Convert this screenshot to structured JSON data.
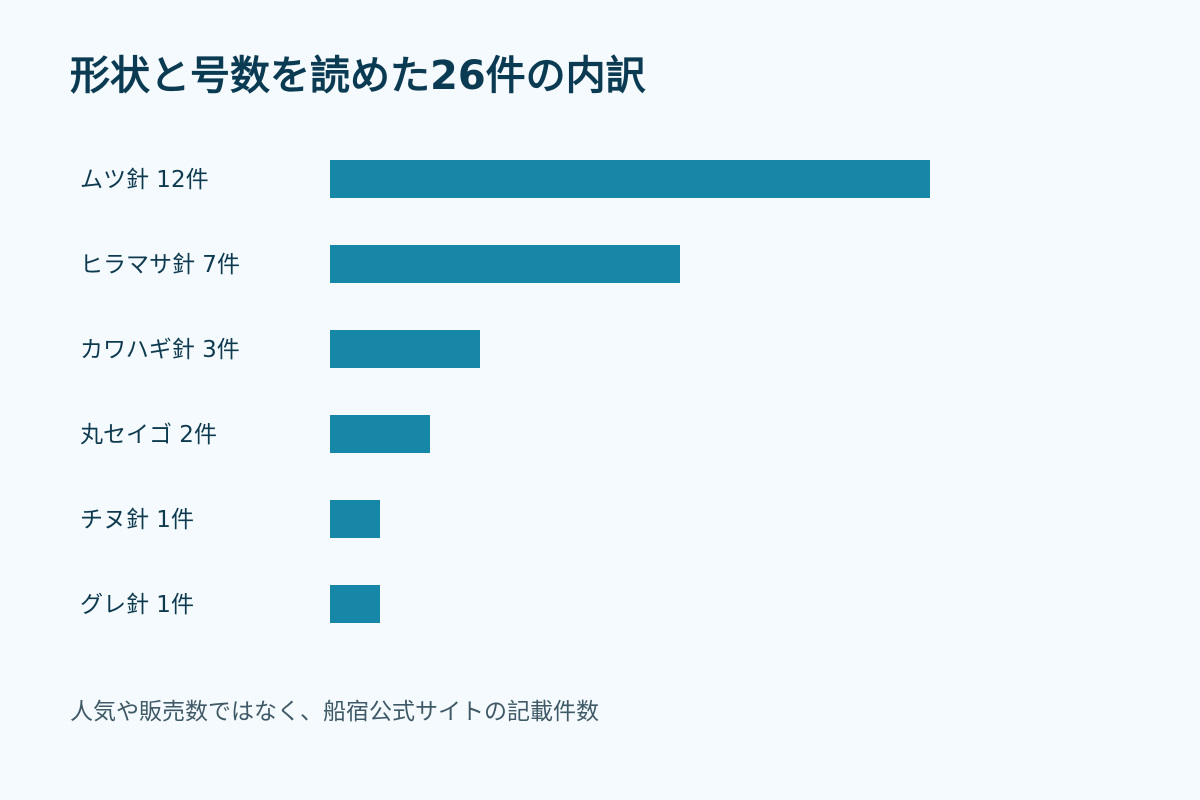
{
  "title": "形状と号数を読めた26件の内訳",
  "footnote": "人気や販売数ではなく、船宿公式サイトの記載件数",
  "colors": {
    "bar": "#1787a8",
    "label": "#0e3a4f",
    "title": "#0b3b52",
    "background": "#f4fafd"
  },
  "chart_data": {
    "type": "bar",
    "orientation": "horizontal",
    "categories": [
      "ムツ針",
      "ヒラマサ針",
      "カワハギ針",
      "丸セイゴ",
      "チヌ針",
      "グレ針"
    ],
    "labels": [
      "ムツ針 12件",
      "ヒラマサ針 7件",
      "カワハギ針 3件",
      "丸セイゴ 2件",
      "チヌ針 1件",
      "グレ針 1件"
    ],
    "values": [
      12,
      7,
      3,
      2,
      1,
      1
    ],
    "unit": "件",
    "xlim": [
      0,
      12
    ],
    "grid": false,
    "legend": "none"
  }
}
